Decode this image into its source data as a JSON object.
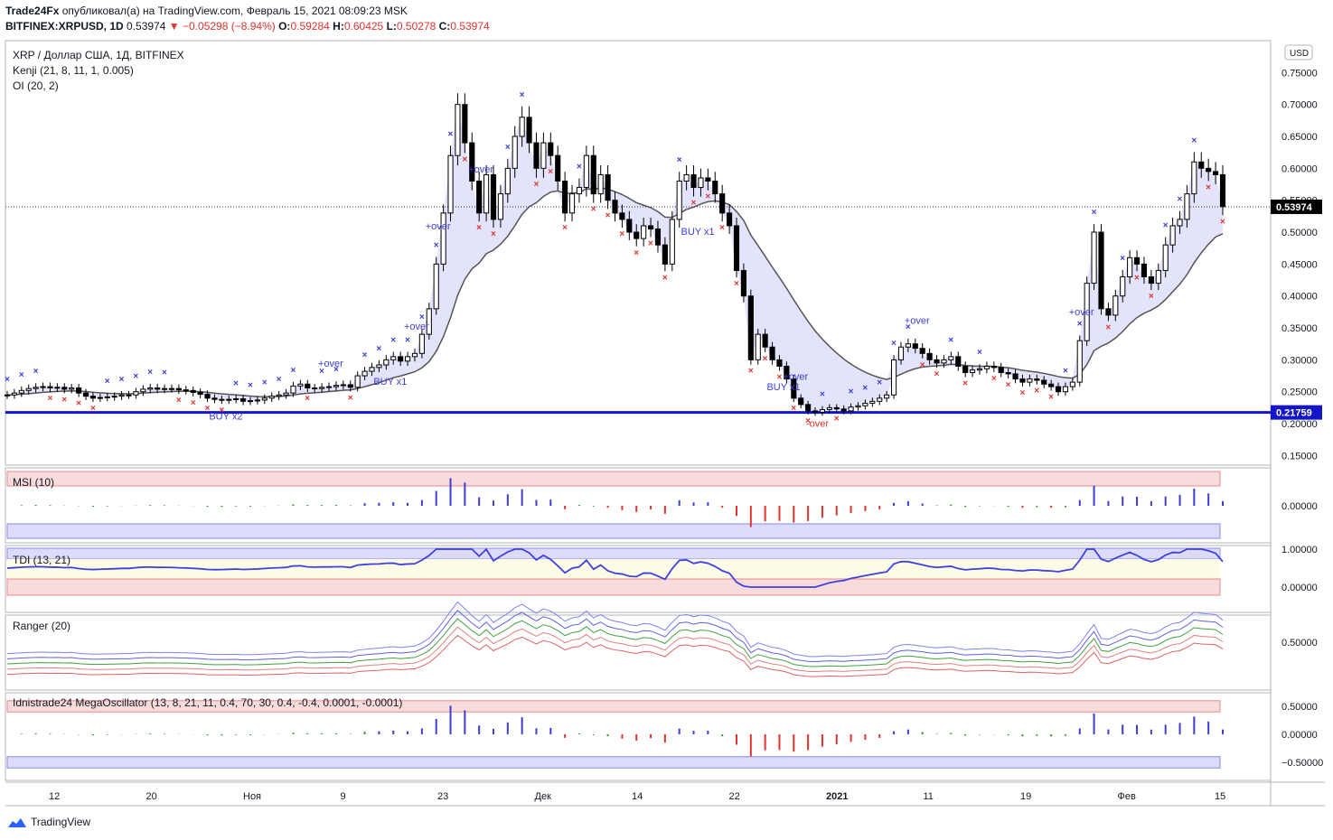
{
  "header": {
    "publisher": "Trade24Fx",
    "published_text": "опубликовал(а) на TradingView.com, Февраль 15, 2021 08:09:23 MSK",
    "symbol": "BITFINEX:XRPUSD, 1D",
    "last": "0.53974",
    "change": "−0.05298 (−8.94%)",
    "o_label": "O:",
    "o": "0.59284",
    "h_label": "H:",
    "h": "0.60425",
    "l_label": "L:",
    "l": "0.50278",
    "c_label": "C:",
    "c": "0.53974"
  },
  "main_legend": {
    "title": "XRP / Доллар США, 1Д, BITFINEX",
    "kenji": "Kenji (21, 8, 11, 1, 0.005)",
    "oi": "OI (20, 2)"
  },
  "currency": "USD",
  "price_label": "0.53974",
  "level_label": "0.21759",
  "panes": {
    "msi": "MSI (10)",
    "tdi": "TDI (13, 21)",
    "ranger": "Ranger (20)",
    "mega": "Idnistrade24 MegaOscillator (13, 8, 21, 11, 0.4, 70, 30, 0.4, -0.4, 0.0001, -0.0001)"
  },
  "footer": {
    "brand": "TradingView"
  },
  "colors": {
    "up": "#ffffff",
    "down": "#000000",
    "level": "#1414c8",
    "blue_fill": "#dcdcfa",
    "red_fill": "#f8dcdc",
    "green_fill": "#dcf3dc",
    "marker_up": "#3c3cd8",
    "marker_down": "#e0332e"
  },
  "chart_data": [
    {
      "type": "candlestick",
      "title": "XRP / Доллар США, 1Д, BITFINEX",
      "x_ticks": [
        "12",
        "20",
        "Ноя",
        "9",
        "23",
        "Дек",
        "14",
        "22",
        "2021",
        "11",
        "19",
        "Фев",
        "15"
      ],
      "y_ticks": [
        0.15,
        0.2,
        0.25,
        0.3,
        0.35,
        0.4,
        0.45,
        0.5,
        0.55,
        0.6,
        0.65,
        0.7,
        0.75
      ],
      "y_tick_labels": [
        "0.15000",
        "0.20000",
        "0.25000",
        "0.30000",
        "0.35000",
        "0.40000",
        "0.45000",
        "0.50000",
        "0.55000",
        "0.60000",
        "0.65000",
        "0.70000",
        "0.75000"
      ],
      "ylim": [
        0.135,
        0.8
      ],
      "close": [
        0.245,
        0.248,
        0.252,
        0.255,
        0.257,
        0.258,
        0.256,
        0.257,
        0.254,
        0.256,
        0.248,
        0.243,
        0.24,
        0.241,
        0.242,
        0.243,
        0.245,
        0.245,
        0.25,
        0.254,
        0.256,
        0.254,
        0.255,
        0.255,
        0.253,
        0.252,
        0.249,
        0.246,
        0.24,
        0.238,
        0.237,
        0.238,
        0.239,
        0.235,
        0.236,
        0.237,
        0.24,
        0.243,
        0.245,
        0.248,
        0.259,
        0.262,
        0.256,
        0.255,
        0.257,
        0.258,
        0.26,
        0.261,
        0.257,
        0.275,
        0.282,
        0.288,
        0.292,
        0.3,
        0.305,
        0.298,
        0.305,
        0.31,
        0.34,
        0.38,
        0.45,
        0.53,
        0.62,
        0.7,
        0.64,
        0.58,
        0.53,
        0.59,
        0.52,
        0.56,
        0.6,
        0.65,
        0.68,
        0.64,
        0.6,
        0.64,
        0.62,
        0.58,
        0.53,
        0.56,
        0.57,
        0.62,
        0.56,
        0.59,
        0.55,
        0.53,
        0.52,
        0.5,
        0.49,
        0.51,
        0.505,
        0.48,
        0.45,
        0.52,
        0.58,
        0.59,
        0.57,
        0.585,
        0.58,
        0.56,
        0.53,
        0.51,
        0.44,
        0.4,
        0.3,
        0.34,
        0.32,
        0.3,
        0.29,
        0.27,
        0.24,
        0.23,
        0.22,
        0.218,
        0.222,
        0.225,
        0.223,
        0.22,
        0.226,
        0.228,
        0.232,
        0.235,
        0.24,
        0.245,
        0.3,
        0.32,
        0.325,
        0.318,
        0.31,
        0.3,
        0.295,
        0.3,
        0.305,
        0.29,
        0.28,
        0.284,
        0.286,
        0.29,
        0.288,
        0.28,
        0.278,
        0.27,
        0.265,
        0.27,
        0.268,
        0.262,
        0.258,
        0.25,
        0.258,
        0.265,
        0.33,
        0.42,
        0.5,
        0.38,
        0.37,
        0.4,
        0.43,
        0.46,
        0.45,
        0.43,
        0.42,
        0.44,
        0.48,
        0.51,
        0.52,
        0.56,
        0.61,
        0.6,
        0.595,
        0.59,
        0.54
      ],
      "last_price": 0.53974,
      "horizontal_level": 0.21759,
      "marker_text_up": [
        "+over",
        "+over",
        "+over",
        "+over",
        "+over",
        "+over",
        "+over",
        "+over",
        "+over"
      ],
      "marker_text_buy": [
        "BUY x2",
        "BUY x1",
        "BUY x1",
        "BUY x1",
        "BUY x1"
      ],
      "marker_text_down": [
        "-over"
      ]
    },
    {
      "type": "bar",
      "title": "MSI (10)",
      "y_ticks": [
        0.0
      ],
      "y_tick_labels": [
        "0.00000"
      ],
      "bands": "upper red band, lower blue band"
    },
    {
      "type": "line",
      "title": "TDI (13, 21)",
      "y_ticks": [
        0.0,
        1.0
      ],
      "y_tick_labels": [
        "0.00000",
        "1.00000"
      ]
    },
    {
      "type": "line",
      "title": "Ranger (20)",
      "y_ticks": [
        0.5
      ],
      "y_tick_labels": [
        "0.50000"
      ]
    },
    {
      "type": "bar",
      "title": "Idnistrade24 MegaOscillator (13, 8, 21, 11, 0.4, 70, 30, 0.4, -0.4, 0.0001, -0.0001)",
      "y_ticks": [
        0.5,
        0.0,
        -0.5
      ],
      "y_tick_labels": [
        "0.50000",
        "0.00000",
        "−0.50000"
      ]
    }
  ]
}
